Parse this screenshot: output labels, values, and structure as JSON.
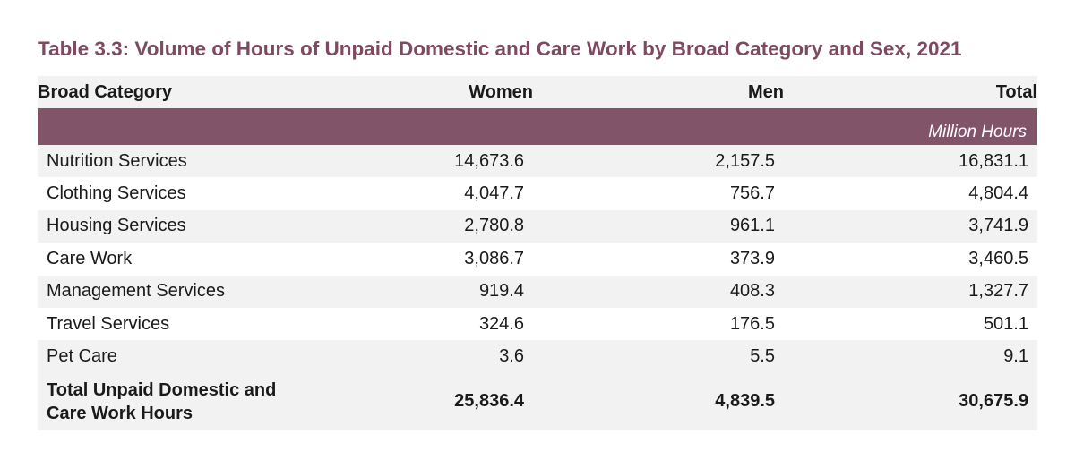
{
  "table": {
    "caption": "Table 3.3: Volume of Hours of Unpaid Domestic and Care Work by Broad Category and Sex, 2021",
    "unit": "Million Hours",
    "columns": [
      "Broad Category",
      "Women",
      "Men",
      "Total"
    ],
    "rows": [
      {
        "category": "Nutrition Services",
        "women": "14,673.6",
        "men": "2,157.5",
        "total": "16,831.1"
      },
      {
        "category": "Clothing Services",
        "women": "4,047.7",
        "men": "756.7",
        "total": "4,804.4"
      },
      {
        "category": "Housing Services",
        "women": "2,780.8",
        "men": "961.1",
        "total": "3,741.9"
      },
      {
        "category": "Care Work",
        "women": "3,086.7",
        "men": "373.9",
        "total": "3,460.5"
      },
      {
        "category": "Management Services",
        "women": "919.4",
        "men": "408.3",
        "total": "1,327.7"
      },
      {
        "category": "Travel Services",
        "women": "324.6",
        "men": "176.5",
        "total": "501.1"
      },
      {
        "category": "Pet Care",
        "women": "3.6",
        "men": "5.5",
        "total": "9.1"
      }
    ],
    "total_row": {
      "category": "Total Unpaid Domestic and Care Work Hours",
      "women": "25,836.4",
      "men": "4,839.5",
      "total": "30,675.9"
    }
  },
  "colors": {
    "caption": "#7e4a61",
    "unit_band": "#825469",
    "stripe": "#f2f2f2"
  }
}
